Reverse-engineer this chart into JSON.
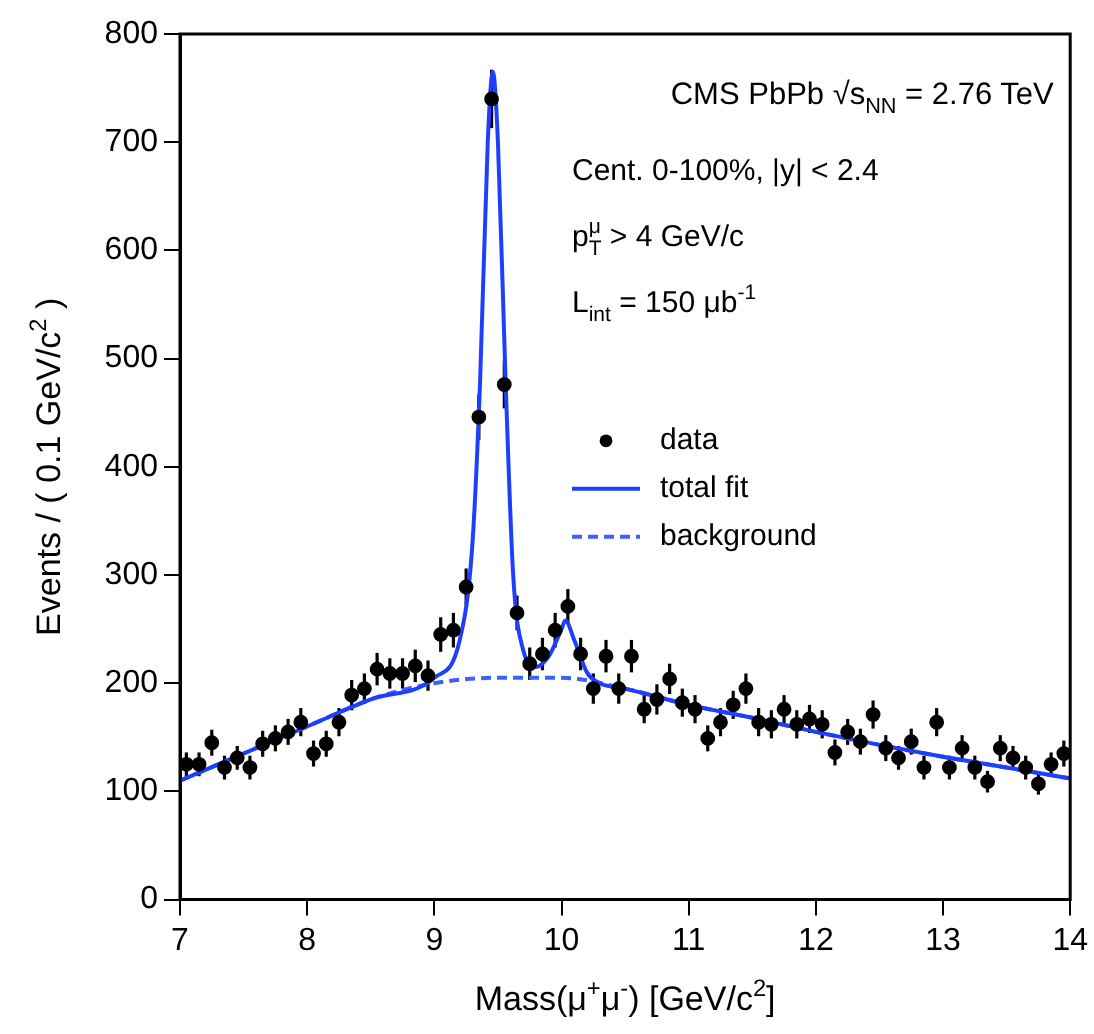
{
  "chart_data": {
    "type": "scatter",
    "xlabel": "Mass(μ$^{+}$μ$^{-}$) [GeV/c$^{2}$]",
    "ylabel": "Events / ( 0.1 GeV/c$^{2}$ )",
    "annotations": [
      "CMS PbPb √s$_{NN}$ = 2.76 TeV",
      "Cent. 0-100%, |y| < 2.4",
      "p$^{μ}$$_{T}$ > 4 GeV/c",
      "L$_{int}$ = 150 μb$^{-1}$"
    ],
    "xlim": [
      7,
      14
    ],
    "xticks": [
      7,
      8,
      9,
      10,
      11,
      12,
      13,
      14
    ],
    "ylim": [
      0,
      800
    ],
    "yticks": [
      0,
      100,
      200,
      300,
      400,
      500,
      600,
      700,
      800
    ],
    "grid": false,
    "legend": "right",
    "series": [
      {
        "name": "data",
        "marker": "circle",
        "color": "#000000",
        "x": [
          7.05,
          7.15,
          7.25,
          7.35,
          7.45,
          7.55,
          7.65,
          7.75,
          7.85,
          7.95,
          8.05,
          8.15,
          8.25,
          8.35,
          8.45,
          8.55,
          8.65,
          8.75,
          8.85,
          8.95,
          9.05,
          9.15,
          9.25,
          9.35,
          9.45,
          9.55,
          9.65,
          9.75,
          9.85,
          9.95,
          10.05,
          10.15,
          10.25,
          10.35,
          10.45,
          10.55,
          10.65,
          10.75,
          10.85,
          10.95,
          11.05,
          11.15,
          11.25,
          11.35,
          11.45,
          11.55,
          11.65,
          11.75,
          11.85,
          11.95,
          12.05,
          12.15,
          12.25,
          12.35,
          12.45,
          12.55,
          12.65,
          12.75,
          12.85,
          12.95,
          13.05,
          13.15,
          13.25,
          13.35,
          13.45,
          13.55,
          13.65,
          13.75,
          13.85,
          13.95
        ],
        "values": [
          125,
          125,
          145,
          122,
          131,
          122,
          144,
          149,
          155,
          164,
          135,
          144,
          164,
          189,
          195,
          213,
          209,
          209,
          216,
          207,
          245,
          249,
          289,
          446,
          740,
          476,
          265,
          218,
          227,
          249,
          271,
          227,
          195,
          225,
          195,
          225,
          176,
          185,
          204,
          182,
          176,
          149,
          164,
          180,
          195,
          164,
          162,
          176,
          162,
          167,
          162,
          136,
          155,
          146,
          171,
          140,
          131,
          146,
          122,
          164,
          122,
          140,
          122,
          109,
          140,
          131,
          122,
          107,
          125,
          135
        ],
        "errors": [
          11,
          11,
          12,
          11,
          11,
          11,
          12,
          12,
          12,
          13,
          12,
          12,
          13,
          14,
          14,
          15,
          14,
          14,
          15,
          14,
          16,
          16,
          17,
          21,
          27,
          22,
          16,
          15,
          15,
          16,
          16,
          15,
          14,
          15,
          14,
          15,
          13,
          14,
          14,
          13,
          13,
          12,
          13,
          13,
          14,
          13,
          13,
          13,
          13,
          13,
          13,
          12,
          12,
          12,
          13,
          12,
          11,
          12,
          11,
          13,
          11,
          12,
          11,
          10,
          12,
          11,
          11,
          10,
          11,
          12
        ],
        "xerrors": [
          0.05,
          0.05,
          0.05,
          0.05,
          0.05,
          0.05,
          0.05,
          0.05,
          0.05,
          0.05,
          0.05,
          0.05,
          0.05,
          0.05,
          0.05,
          0.05,
          0.05,
          0.05,
          0.05,
          0.05,
          0.05,
          0.05,
          0.05,
          0.05,
          0.05,
          0.05,
          0.05,
          0.05,
          0.05,
          0.05,
          0.05,
          0.05,
          0.05,
          0.05,
          0.05,
          0.05,
          0.05,
          0.05,
          0.05,
          0.05,
          0.05,
          0.05,
          0.05,
          0.05,
          0.05,
          0.05,
          0.05,
          0.05,
          0.05,
          0.05,
          0.05,
          0.05,
          0.05,
          0.05,
          0.05,
          0.05,
          0.05,
          0.05,
          0.05,
          0.05,
          0.05,
          0.05,
          0.05,
          0.05,
          0.05,
          0.05,
          0.05,
          0.05,
          0.05,
          0.05
        ]
      },
      {
        "name": "total fit",
        "type": "line",
        "color": "#1f3fff",
        "line_style": "solid",
        "x": [
          7,
          7.5,
          8,
          8.5,
          9,
          9.2,
          9.3,
          9.36,
          9.42,
          9.46,
          9.5,
          9.56,
          9.62,
          9.7,
          9.8,
          9.9,
          10.0,
          10.03,
          10.1,
          10.2,
          10.3,
          10.5,
          11,
          11.5,
          12,
          12.5,
          13,
          13.5,
          14
        ],
        "values": [
          110,
          135,
          160,
          185,
          205,
          240,
          330,
          480,
          700,
          765,
          700,
          480,
          300,
          230,
          215,
          225,
          250,
          258,
          240,
          210,
          200,
          195,
          180,
          168,
          155,
          143,
          132,
          122,
          112
        ]
      },
      {
        "name": "background",
        "type": "line",
        "color": "#3f5fff",
        "line_style": "dashed",
        "x": [
          7,
          7.5,
          8,
          8.5,
          9,
          9.5,
          10,
          10.5,
          11,
          11.5,
          12,
          12.5,
          13,
          13.5,
          14
        ],
        "values": [
          110,
          135,
          160,
          185,
          200,
          205,
          205,
          195,
          180,
          168,
          155,
          143,
          132,
          122,
          112
        ]
      }
    ]
  }
}
